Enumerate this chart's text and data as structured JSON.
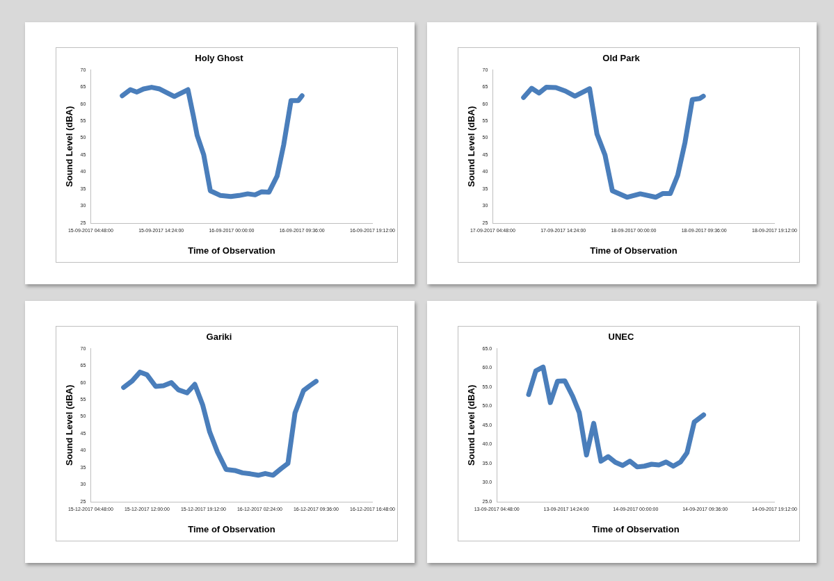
{
  "chart_data": [
    {
      "type": "line",
      "title": "Holy Ghost",
      "xlabel": "Time of Observation",
      "ylabel": "Sound Level (dBA)",
      "line_style": "solid",
      "marker": "none",
      "x": [
        "2017-09-15T09:06",
        "2017-09-15T10:12",
        "2017-09-15T11:06",
        "2017-09-15T12:00",
        "2017-09-15T13:06",
        "2017-09-15T14:12",
        "2017-09-15T16:12",
        "2017-09-15T18:03",
        "2017-09-15T18:48",
        "2017-09-15T19:18",
        "2017-09-15T20:12",
        "2017-09-15T21:06",
        "2017-09-15T22:30",
        "2017-09-15T23:54",
        "2017-09-16T01:00",
        "2017-09-16T02:12",
        "2017-09-16T03:12",
        "2017-09-16T04:06",
        "2017-09-16T05:06",
        "2017-09-16T06:12",
        "2017-09-16T07:06",
        "2017-09-16T08:06",
        "2017-09-16T09:06",
        "2017-09-16T09:36"
      ],
      "series": [
        {
          "color": "#4a7ebb",
          "values": [
            62.4,
            64.2,
            63.5,
            64.4,
            64.9,
            64.4,
            62.2,
            64.2,
            56.4,
            50.8,
            45.1,
            34.5,
            33.1,
            32.8,
            33.1,
            33.6,
            33.3,
            34.2,
            34.1,
            38.8,
            48.0,
            61.0,
            61.0,
            62.4
          ]
        }
      ],
      "xlim": [
        "2017-09-15T04:48",
        "2017-09-16T19:12"
      ],
      "xticks": [
        {
          "value": "2017-09-15T04:48",
          "label": "15-09-2017 04:48:00"
        },
        {
          "value": "2017-09-15T14:24",
          "label": "15-09-2017 14:24:00"
        },
        {
          "value": "2017-09-16T00:00",
          "label": "16-09-2017 00:00:00"
        },
        {
          "value": "2017-09-16T09:36",
          "label": "16-09-2017 09:36:00"
        },
        {
          "value": "2017-09-16T19:12",
          "label": "16-09-2017 19:12:00"
        }
      ],
      "ylim": [
        25,
        70
      ],
      "yticks": [
        25,
        30,
        35,
        40,
        45,
        50,
        55,
        60,
        65,
        70
      ]
    },
    {
      "type": "line",
      "title": "Old Park",
      "xlabel": "Time of Observation",
      "ylabel": "Sound Level (dBA)",
      "line_style": "solid",
      "marker": "none",
      "x": [
        "2017-09-17T09:00",
        "2017-09-17T10:06",
        "2017-09-17T11:06",
        "2017-09-17T12:06",
        "2017-09-17T13:24",
        "2017-09-17T14:42",
        "2017-09-17T16:00",
        "2017-09-17T18:00",
        "2017-09-17T19:00",
        "2017-09-17T20:06",
        "2017-09-17T21:06",
        "2017-09-17T23:06",
        "2017-09-18T00:54",
        "2017-09-18T03:00",
        "2017-09-18T04:00",
        "2017-09-18T05:00",
        "2017-09-18T06:00",
        "2017-09-18T07:00",
        "2017-09-18T08:00",
        "2017-09-18T09:00",
        "2017-09-18T09:30"
      ],
      "series": [
        {
          "color": "#4a7ebb",
          "values": [
            61.9,
            64.6,
            63.2,
            64.9,
            64.8,
            63.8,
            62.3,
            64.5,
            51.2,
            45.0,
            34.5,
            32.6,
            33.6,
            32.6,
            33.7,
            33.7,
            39.0,
            48.7,
            61.3,
            61.6,
            62.3
          ]
        }
      ],
      "xlim": [
        "2017-09-17T04:48",
        "2017-09-18T19:12"
      ],
      "xticks": [
        {
          "value": "2017-09-17T04:48",
          "label": "17-09-2017 04:48:00"
        },
        {
          "value": "2017-09-17T14:24",
          "label": "17-09-2017 14:24:00"
        },
        {
          "value": "2017-09-18T00:00",
          "label": "18-09-2017 00:00:00"
        },
        {
          "value": "2017-09-18T09:36",
          "label": "18-09-2017 09:36:00"
        },
        {
          "value": "2017-09-18T19:12",
          "label": "18-09-2017 19:12:00"
        }
      ],
      "ylim": [
        25,
        70
      ],
      "yticks": [
        25,
        30,
        35,
        40,
        45,
        50,
        55,
        60,
        65,
        70
      ]
    },
    {
      "type": "line",
      "title": "Gariki",
      "xlabel": "Time of Observation",
      "ylabel": "Sound Level (dBA)",
      "line_style": "solid",
      "marker": "none",
      "x": [
        "2017-12-15T09:00",
        "2017-12-15T10:06",
        "2017-12-15T11:06",
        "2017-12-15T12:00",
        "2017-12-15T13:06",
        "2017-12-15T14:06",
        "2017-12-15T15:06",
        "2017-12-15T16:00",
        "2017-12-15T17:06",
        "2017-12-15T18:06",
        "2017-12-15T19:06",
        "2017-12-15T20:00",
        "2017-12-15T21:00",
        "2017-12-15T22:06",
        "2017-12-15T23:12",
        "2017-12-16T00:12",
        "2017-12-16T01:12",
        "2017-12-16T02:12",
        "2017-12-16T03:06",
        "2017-12-16T04:06",
        "2017-12-16T05:06",
        "2017-12-16T06:00",
        "2017-12-16T06:54",
        "2017-12-16T08:00",
        "2017-12-16T08:48",
        "2017-12-16T09:36"
      ],
      "series": [
        {
          "color": "#4a7ebb",
          "values": [
            58.6,
            60.5,
            63.1,
            62.3,
            58.9,
            59.1,
            60.0,
            57.9,
            57.0,
            59.5,
            53.5,
            45.5,
            39.6,
            34.5,
            34.2,
            33.5,
            33.2,
            32.8,
            33.3,
            32.8,
            34.7,
            36.3,
            51.1,
            57.7,
            59.1,
            60.4
          ]
        }
      ],
      "xlim": [
        "2017-12-15T04:48",
        "2017-12-16T16:48"
      ],
      "xticks": [
        {
          "value": "2017-12-15T04:48",
          "label": "15-12-2017 04:48:00"
        },
        {
          "value": "2017-12-15T12:00",
          "label": "15-12-2017 12:00:00"
        },
        {
          "value": "2017-12-15T19:12",
          "label": "15-12-2017 19:12:00"
        },
        {
          "value": "2017-12-16T02:24",
          "label": "16-12-2017 02:24:00"
        },
        {
          "value": "2017-12-16T09:36",
          "label": "16-12-2017 09:36:00"
        },
        {
          "value": "2017-12-16T16:48",
          "label": "16-12-2017 16:48:00"
        }
      ],
      "ylim": [
        25,
        70
      ],
      "yticks": [
        25,
        30,
        35,
        40,
        45,
        50,
        55,
        60,
        65,
        70
      ]
    },
    {
      "type": "line",
      "title": "UNEC",
      "xlabel": "Time of Observation",
      "ylabel": "Sound Level (dBA)",
      "line_style": "solid",
      "marker": "none",
      "x": [
        "2017-09-13T09:12",
        "2017-09-13T10:12",
        "2017-09-13T11:12",
        "2017-09-13T12:12",
        "2017-09-13T13:12",
        "2017-09-13T14:12",
        "2017-09-13T15:18",
        "2017-09-13T16:12",
        "2017-09-13T17:12",
        "2017-09-13T18:12",
        "2017-09-13T19:12",
        "2017-09-13T20:12",
        "2017-09-13T21:12",
        "2017-09-13T22:12",
        "2017-09-13T23:12",
        "2017-09-14T00:12",
        "2017-09-14T01:12",
        "2017-09-14T02:12",
        "2017-09-14T03:12",
        "2017-09-14T04:12",
        "2017-09-14T05:12",
        "2017-09-14T06:12",
        "2017-09-14T07:06",
        "2017-09-14T08:06",
        "2017-09-14T09:24"
      ],
      "series": [
        {
          "color": "#4a7ebb",
          "values": [
            53.0,
            59.2,
            60.2,
            50.9,
            56.5,
            56.6,
            52.5,
            48.3,
            37.2,
            45.5,
            35.6,
            36.8,
            35.3,
            34.5,
            35.6,
            34.1,
            34.3,
            34.8,
            34.6,
            35.4,
            34.3,
            35.4,
            37.8,
            45.8,
            47.7
          ]
        }
      ],
      "xlim": [
        "2017-09-13T04:48",
        "2017-09-14T19:12"
      ],
      "xticks": [
        {
          "value": "2017-09-13T04:48",
          "label": "13-09-2017 04:48:00"
        },
        {
          "value": "2017-09-13T14:24",
          "label": "13-09-2017 14:24:00"
        },
        {
          "value": "2017-09-14T00:00",
          "label": "14-09-2017 00:00:00"
        },
        {
          "value": "2017-09-14T09:36",
          "label": "14-09-2017 09:36:00"
        },
        {
          "value": "2017-09-14T19:12",
          "label": "14-09-2017 19:12:00"
        }
      ],
      "ylim": [
        25,
        65
      ],
      "yticks": [
        {
          "value": 25,
          "label": "25.0"
        },
        {
          "value": 30,
          "label": "30.0"
        },
        {
          "value": 35,
          "label": "35.0"
        },
        {
          "value": 40,
          "label": "40.0"
        },
        {
          "value": 45,
          "label": "45.0"
        },
        {
          "value": 50,
          "label": "50.0"
        },
        {
          "value": 55,
          "label": "55.0"
        },
        {
          "value": 60,
          "label": "60.0"
        },
        {
          "value": 65,
          "label": "65.0"
        }
      ]
    }
  ]
}
